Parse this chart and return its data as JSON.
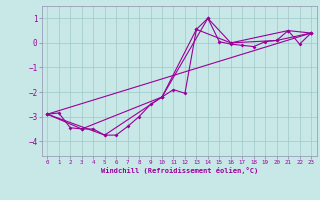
{
  "xlabel": "Windchill (Refroidissement éolien,°C)",
  "bg_color": "#c8e8e8",
  "grid_color": "#a0c8c8",
  "line_color": "#990099",
  "xlim": [
    -0.5,
    23.5
  ],
  "ylim": [
    -4.6,
    1.5
  ],
  "xticks": [
    0,
    1,
    2,
    3,
    4,
    5,
    6,
    7,
    8,
    9,
    10,
    11,
    12,
    13,
    14,
    15,
    16,
    17,
    18,
    19,
    20,
    21,
    22,
    23
  ],
  "yticks": [
    -4,
    -3,
    -2,
    -1,
    0,
    1
  ],
  "series1": [
    [
      0,
      -2.9
    ],
    [
      1,
      -2.85
    ],
    [
      2,
      -3.45
    ],
    [
      3,
      -3.5
    ],
    [
      4,
      -3.5
    ],
    [
      5,
      -3.75
    ],
    [
      6,
      -3.75
    ],
    [
      7,
      -3.4
    ],
    [
      8,
      -3.0
    ],
    [
      9,
      -2.5
    ],
    [
      10,
      -2.2
    ],
    [
      11,
      -1.9
    ],
    [
      12,
      -2.05
    ],
    [
      13,
      0.55
    ],
    [
      14,
      1.0
    ],
    [
      15,
      0.05
    ],
    [
      16,
      -0.05
    ],
    [
      17,
      -0.1
    ],
    [
      18,
      -0.15
    ],
    [
      19,
      0.05
    ],
    [
      20,
      0.1
    ],
    [
      21,
      0.5
    ],
    [
      22,
      -0.05
    ],
    [
      23,
      0.4
    ]
  ],
  "series2": [
    [
      0,
      -2.9
    ],
    [
      3,
      -3.5
    ],
    [
      10,
      -2.2
    ],
    [
      14,
      1.0
    ],
    [
      16,
      0.0
    ],
    [
      20,
      0.1
    ],
    [
      23,
      0.4
    ]
  ],
  "series3": [
    [
      0,
      -2.9
    ],
    [
      5,
      -3.75
    ],
    [
      10,
      -2.2
    ],
    [
      13,
      0.55
    ],
    [
      16,
      0.0
    ],
    [
      21,
      0.5
    ],
    [
      23,
      0.4
    ]
  ],
  "series4": [
    [
      0,
      -2.9
    ],
    [
      23,
      0.4
    ]
  ]
}
